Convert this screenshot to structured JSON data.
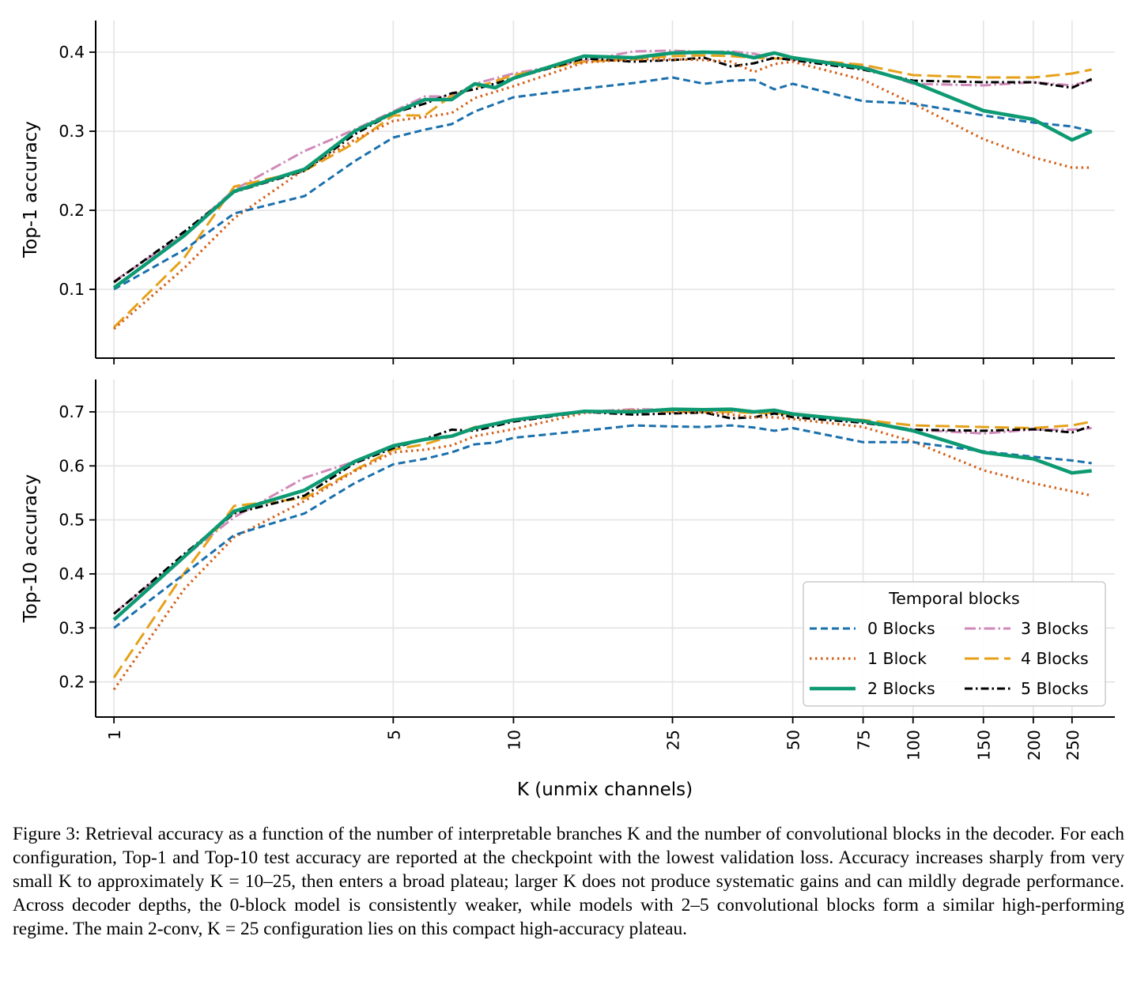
{
  "chart_data": [
    {
      "type": "line",
      "ylabel": "Top-1 accuracy",
      "x_scale": "log",
      "x_ticks": [
        1,
        5,
        10,
        25,
        50,
        75,
        100,
        150,
        200,
        250
      ],
      "xlim": [
        0.9,
        320
      ],
      "ylim": [
        0.013,
        0.44
      ],
      "y_ticks": [
        0.1,
        0.2,
        0.3,
        0.4
      ],
      "grid": true,
      "series": [
        {
          "name": "0 Blocks",
          "color": "#1a70ad",
          "x": [
            1,
            1.5,
            2,
            3,
            4,
            5,
            6,
            7,
            8,
            10,
            15,
            20,
            25,
            30,
            35,
            40,
            45,
            50,
            75,
            100,
            150,
            200,
            250,
            280
          ],
          "y": [
            0.1,
            0.15,
            0.196,
            0.218,
            0.262,
            0.292,
            0.302,
            0.309,
            0.325,
            0.343,
            0.354,
            0.361,
            0.368,
            0.36,
            0.364,
            0.365,
            0.353,
            0.36,
            0.338,
            0.335,
            0.32,
            0.311,
            0.306,
            0.3
          ]
        },
        {
          "name": "1 Block",
          "color": "#d3621b",
          "x": [
            1,
            1.5,
            2,
            3,
            4,
            5,
            6,
            7,
            8,
            10,
            15,
            20,
            25,
            30,
            35,
            40,
            45,
            50,
            75,
            100,
            150,
            200,
            250,
            280
          ],
          "y": [
            0.05,
            0.127,
            0.19,
            0.252,
            0.289,
            0.313,
            0.318,
            0.323,
            0.342,
            0.357,
            0.387,
            0.391,
            0.391,
            0.39,
            0.388,
            0.375,
            0.385,
            0.388,
            0.365,
            0.335,
            0.29,
            0.267,
            0.254,
            0.254
          ]
        },
        {
          "name": "2 Blocks",
          "color": "#0d9a72",
          "x": [
            1,
            1.5,
            2,
            3,
            4,
            5,
            6,
            7,
            8,
            9,
            10,
            15,
            20,
            25,
            30,
            35,
            40,
            45,
            50,
            75,
            100,
            150,
            200,
            250,
            280
          ],
          "y": [
            0.102,
            0.168,
            0.224,
            0.252,
            0.3,
            0.323,
            0.34,
            0.34,
            0.36,
            0.355,
            0.367,
            0.395,
            0.393,
            0.399,
            0.4,
            0.399,
            0.393,
            0.399,
            0.393,
            0.38,
            0.362,
            0.326,
            0.315,
            0.289,
            0.3
          ]
        },
        {
          "name": "3 Blocks",
          "color": "#d089b8",
          "x": [
            1,
            1.5,
            2,
            3,
            4,
            5,
            6,
            7,
            8,
            10,
            15,
            20,
            25,
            30,
            35,
            40,
            45,
            50,
            75,
            100,
            150,
            200,
            250,
            280
          ],
          "y": [
            0.11,
            0.17,
            0.226,
            0.275,
            0.302,
            0.325,
            0.344,
            0.344,
            0.36,
            0.373,
            0.389,
            0.401,
            0.402,
            0.4,
            0.401,
            0.398,
            0.392,
            0.391,
            0.382,
            0.36,
            0.358,
            0.362,
            0.358,
            0.364
          ]
        },
        {
          "name": "4 Blocks",
          "color": "#e6a11a",
          "x": [
            1,
            1.5,
            2,
            3,
            4,
            5,
            6,
            7,
            8,
            10,
            15,
            20,
            25,
            30,
            35,
            40,
            45,
            50,
            75,
            100,
            150,
            200,
            250,
            280
          ],
          "y": [
            0.052,
            0.14,
            0.23,
            0.25,
            0.285,
            0.32,
            0.32,
            0.345,
            0.355,
            0.371,
            0.388,
            0.391,
            0.395,
            0.396,
            0.395,
            0.393,
            0.392,
            0.392,
            0.384,
            0.371,
            0.368,
            0.368,
            0.373,
            0.378
          ]
        },
        {
          "name": "5 Blocks",
          "color": "#000000",
          "x": [
            1,
            1.5,
            2,
            3,
            4,
            5,
            6,
            7,
            8,
            10,
            15,
            20,
            25,
            30,
            35,
            40,
            45,
            50,
            75,
            100,
            150,
            200,
            250,
            280
          ],
          "y": [
            0.109,
            0.173,
            0.223,
            0.25,
            0.296,
            0.323,
            0.335,
            0.348,
            0.353,
            0.367,
            0.392,
            0.388,
            0.39,
            0.393,
            0.382,
            0.386,
            0.393,
            0.39,
            0.378,
            0.364,
            0.362,
            0.362,
            0.355,
            0.366
          ]
        }
      ]
    },
    {
      "type": "line",
      "ylabel": "Top-10 accuracy",
      "xlabel": "K (unmix channels)",
      "x_scale": "log",
      "x_ticks": [
        1,
        5,
        10,
        25,
        50,
        75,
        100,
        150,
        200,
        250
      ],
      "x_tick_labels": [
        "1",
        "5",
        "10",
        "25",
        "50",
        "75",
        "100",
        "150",
        "200",
        "250"
      ],
      "xlim": [
        0.9,
        320
      ],
      "ylim": [
        0.135,
        0.76
      ],
      "y_ticks": [
        0.2,
        0.3,
        0.4,
        0.5,
        0.6,
        0.7
      ],
      "grid": true,
      "legend": {
        "title": "Temporal blocks",
        "placement": "lower-right",
        "columns": 2
      },
      "series": [
        {
          "name": "0 Blocks",
          "color": "#1a70ad",
          "x": [
            1,
            1.5,
            2,
            3,
            4,
            5,
            6,
            7,
            8,
            9,
            10,
            15,
            20,
            25,
            30,
            35,
            40,
            45,
            50,
            75,
            100,
            150,
            200,
            250,
            280
          ],
          "y": [
            0.3,
            0.4,
            0.472,
            0.512,
            0.568,
            0.603,
            0.613,
            0.625,
            0.64,
            0.643,
            0.652,
            0.665,
            0.675,
            0.673,
            0.672,
            0.675,
            0.671,
            0.665,
            0.67,
            0.644,
            0.644,
            0.627,
            0.617,
            0.61,
            0.605
          ]
        },
        {
          "name": "1 Block",
          "color": "#d3621b",
          "x": [
            1,
            1.5,
            2,
            3,
            4,
            5,
            6,
            7,
            8,
            10,
            15,
            20,
            25,
            30,
            35,
            40,
            45,
            50,
            75,
            100,
            150,
            200,
            250,
            280
          ],
          "y": [
            0.186,
            0.372,
            0.468,
            0.535,
            0.59,
            0.625,
            0.63,
            0.638,
            0.655,
            0.668,
            0.698,
            0.703,
            0.7,
            0.7,
            0.695,
            0.69,
            0.69,
            0.687,
            0.672,
            0.645,
            0.592,
            0.568,
            0.553,
            0.545
          ]
        },
        {
          "name": "2 Blocks",
          "color": "#0d9a72",
          "x": [
            1,
            1.5,
            2,
            3,
            4,
            5,
            6,
            7,
            8,
            10,
            15,
            20,
            25,
            30,
            35,
            40,
            45,
            50,
            75,
            100,
            150,
            200,
            250,
            280
          ],
          "y": [
            0.315,
            0.432,
            0.516,
            0.555,
            0.608,
            0.637,
            0.649,
            0.655,
            0.67,
            0.685,
            0.701,
            0.7,
            0.705,
            0.704,
            0.705,
            0.7,
            0.703,
            0.696,
            0.683,
            0.665,
            0.625,
            0.613,
            0.587,
            0.591
          ]
        },
        {
          "name": "3 Blocks",
          "color": "#d089b8",
          "x": [
            1,
            1.5,
            2,
            3,
            4,
            5,
            6,
            7,
            8,
            10,
            15,
            20,
            25,
            30,
            35,
            40,
            45,
            50,
            75,
            100,
            150,
            200,
            250,
            280
          ],
          "y": [
            0.327,
            0.432,
            0.505,
            0.578,
            0.608,
            0.635,
            0.65,
            0.656,
            0.67,
            0.685,
            0.7,
            0.705,
            0.704,
            0.702,
            0.702,
            0.699,
            0.7,
            0.695,
            0.682,
            0.667,
            0.66,
            0.667,
            0.667,
            0.67
          ]
        },
        {
          "name": "4 Blocks",
          "color": "#e6a11a",
          "x": [
            1,
            1.5,
            2,
            3,
            4,
            5,
            6,
            7,
            8,
            10,
            15,
            20,
            25,
            30,
            35,
            40,
            45,
            50,
            75,
            100,
            150,
            200,
            250,
            280
          ],
          "y": [
            0.208,
            0.402,
            0.526,
            0.54,
            0.592,
            0.63,
            0.64,
            0.655,
            0.672,
            0.684,
            0.701,
            0.702,
            0.701,
            0.7,
            0.7,
            0.698,
            0.698,
            0.695,
            0.685,
            0.675,
            0.672,
            0.67,
            0.675,
            0.682
          ]
        },
        {
          "name": "5 Blocks",
          "color": "#000000",
          "x": [
            1,
            1.5,
            2,
            3,
            4,
            5,
            6,
            7,
            8,
            10,
            15,
            20,
            25,
            30,
            35,
            40,
            45,
            50,
            75,
            100,
            150,
            200,
            250,
            280
          ],
          "y": [
            0.326,
            0.437,
            0.512,
            0.545,
            0.605,
            0.633,
            0.65,
            0.667,
            0.665,
            0.682,
            0.7,
            0.695,
            0.697,
            0.699,
            0.688,
            0.69,
            0.697,
            0.69,
            0.68,
            0.667,
            0.665,
            0.668,
            0.662,
            0.674
          ]
        }
      ]
    }
  ],
  "caption": {
    "label": "Figure 3:",
    "text": "Retrieval accuracy as a function of the number of interpretable branches K and the number of convolutional blocks in the decoder. For each configuration, Top-1 and Top-10 test accuracy are reported at the checkpoint with the lowest validation loss. Accuracy increases sharply from very small K to approximately K = 10–25, then enters a broad plateau; larger K does not produce systematic gains and can mildly degrade performance. Across decoder depths, the 0-block model is consistently weaker, while models with 2–5 convolutional blocks form a similar high-performing regime. The main 2-conv, K = 25 configuration lies on this compact high-accuracy plateau."
  }
}
